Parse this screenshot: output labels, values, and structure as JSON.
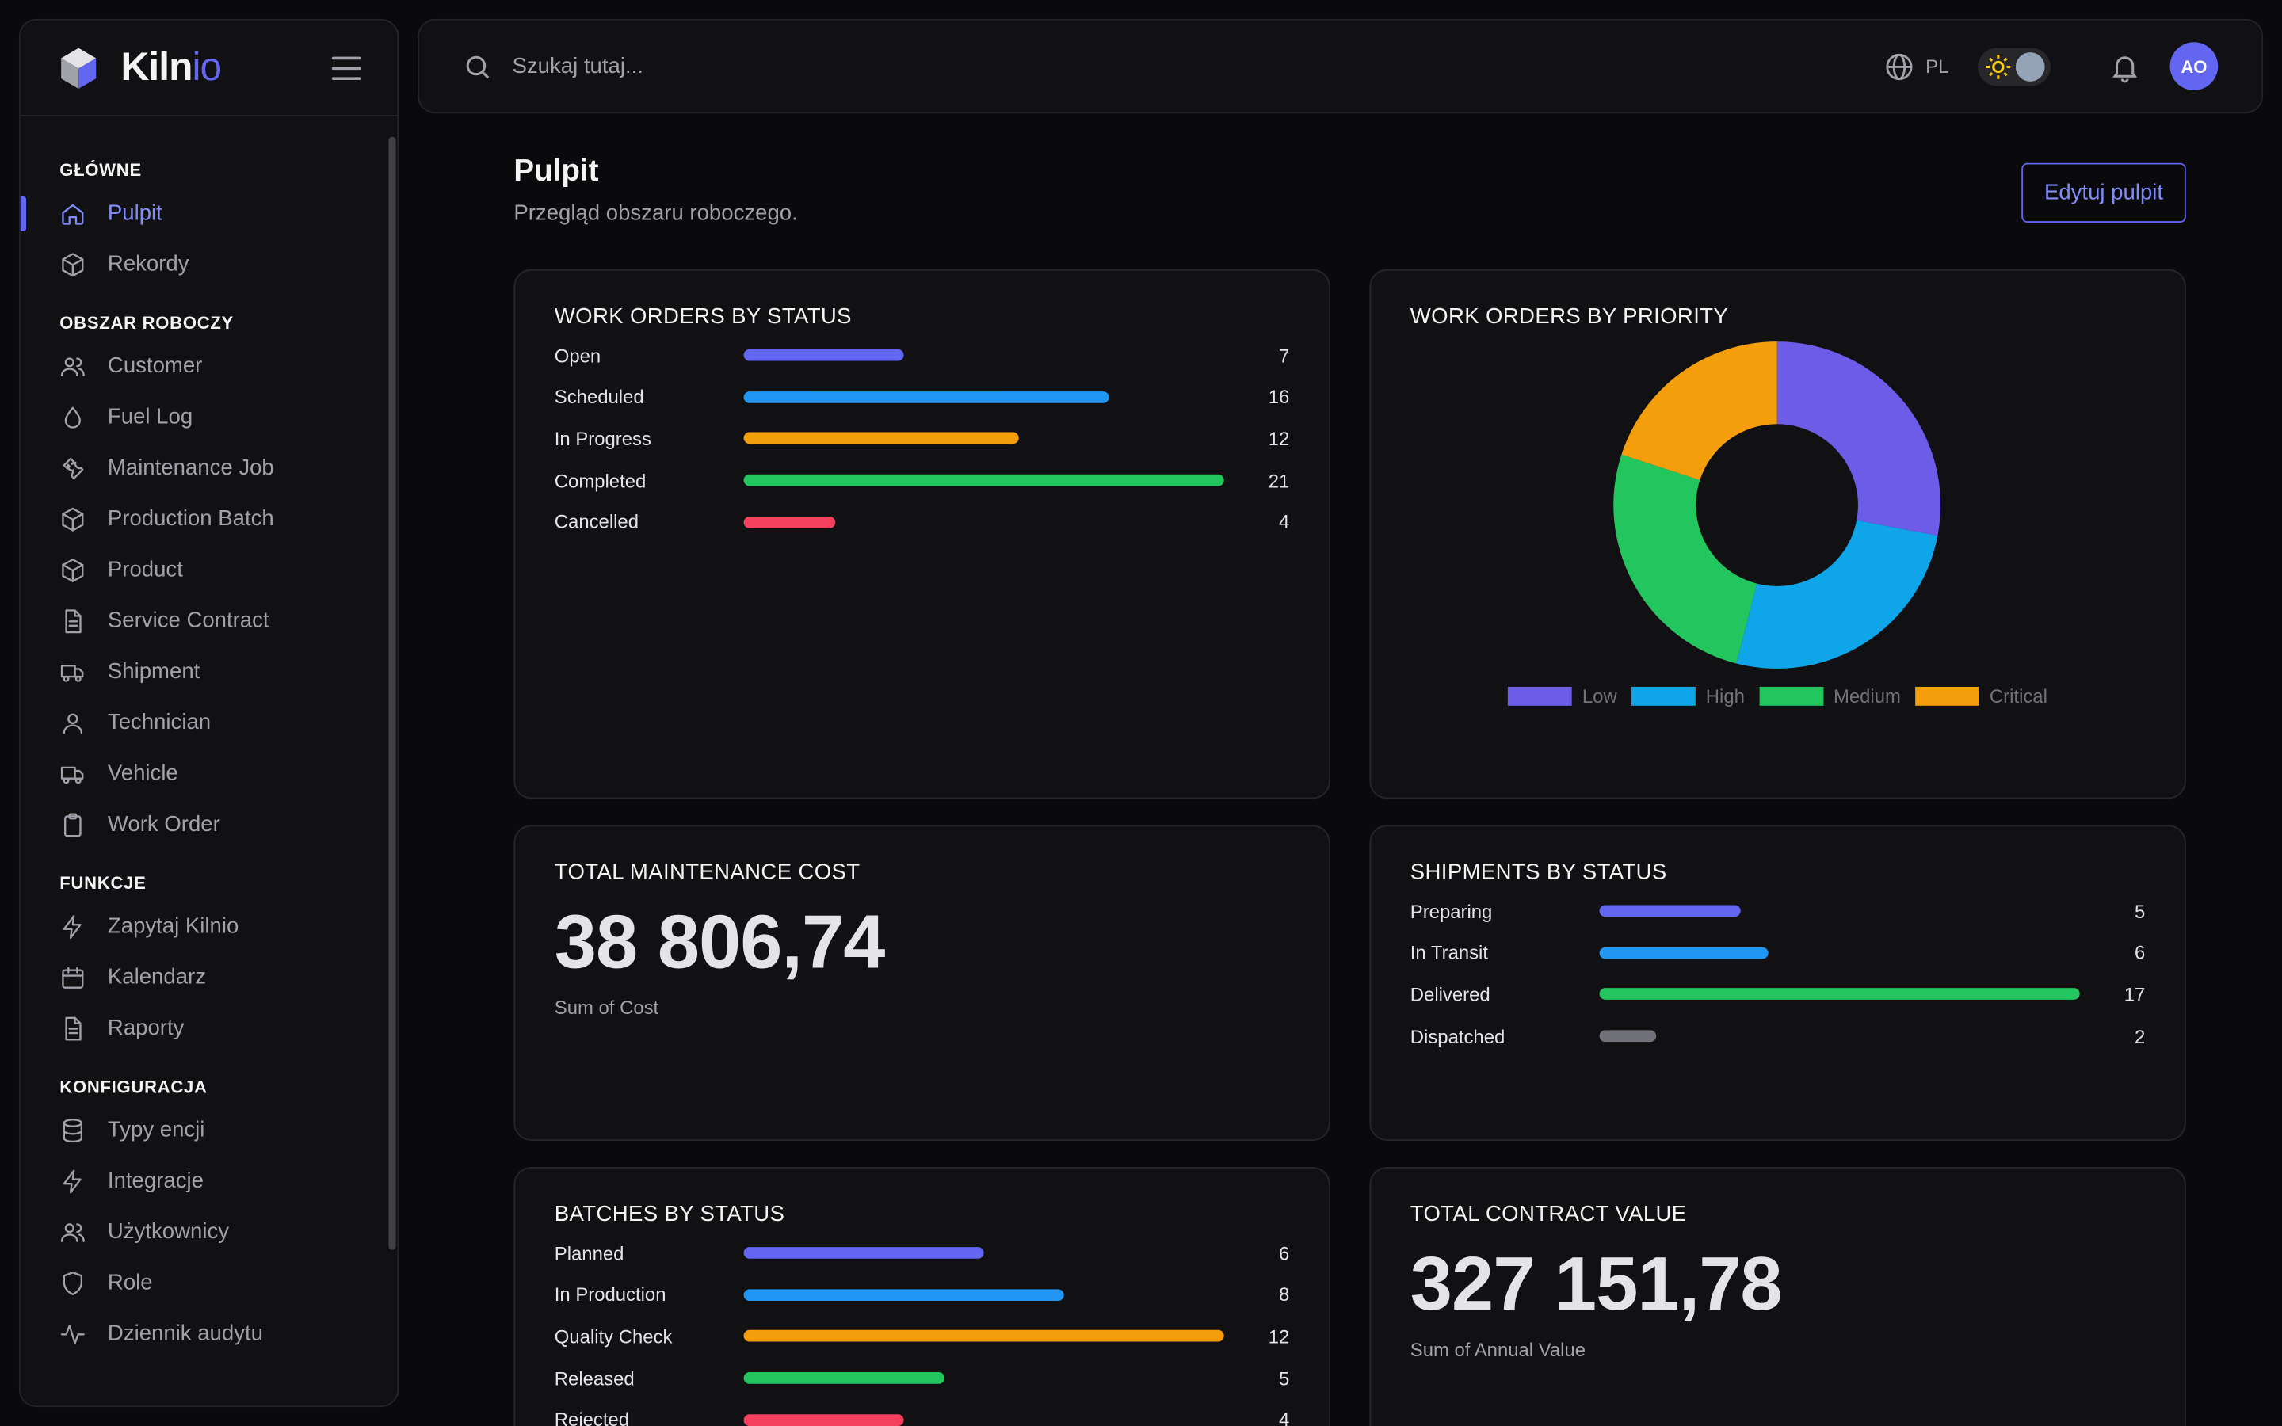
{
  "app": {
    "logo_main": "Kiln",
    "logo_accent": "io"
  },
  "sidebar": {
    "sections": [
      {
        "label": "GŁÓWNE",
        "items": [
          {
            "label": "Pulpit",
            "icon": "home-icon",
            "active": true
          },
          {
            "label": "Rekordy",
            "icon": "cube-icon"
          }
        ]
      },
      {
        "label": "OBSZAR ROBOCZY",
        "items": [
          {
            "label": "Customer",
            "icon": "users-icon"
          },
          {
            "label": "Fuel Log",
            "icon": "droplet-icon"
          },
          {
            "label": "Maintenance Job",
            "icon": "wrench-icon"
          },
          {
            "label": "Production Batch",
            "icon": "cube-icon"
          },
          {
            "label": "Product",
            "icon": "cube-icon"
          },
          {
            "label": "Service Contract",
            "icon": "document-icon"
          },
          {
            "label": "Shipment",
            "icon": "truck-icon"
          },
          {
            "label": "Technician",
            "icon": "user-icon"
          },
          {
            "label": "Vehicle",
            "icon": "truck-icon"
          },
          {
            "label": "Work Order",
            "icon": "clipboard-icon"
          }
        ]
      },
      {
        "label": "FUNKCJE",
        "items": [
          {
            "label": "Zapytaj Kilnio",
            "icon": "bolt-icon"
          },
          {
            "label": "Kalendarz",
            "icon": "calendar-icon"
          },
          {
            "label": "Raporty",
            "icon": "document-icon"
          }
        ]
      },
      {
        "label": "KONFIGURACJA",
        "items": [
          {
            "label": "Typy encji",
            "icon": "database-icon"
          },
          {
            "label": "Integracje",
            "icon": "bolt-icon"
          },
          {
            "label": "Użytkownicy",
            "icon": "users-icon"
          },
          {
            "label": "Role",
            "icon": "shield-icon"
          },
          {
            "label": "Dziennik audytu",
            "icon": "activity-icon"
          }
        ]
      }
    ]
  },
  "topbar": {
    "search_placeholder": "Szukaj tutaj...",
    "language": "PL",
    "avatar_initials": "AO"
  },
  "page": {
    "title": "Pulpit",
    "subtitle": "Przegląd obszaru roboczego.",
    "edit_button": "Edytuj pulpit"
  },
  "cards": {
    "wo_status": {
      "title": "WORK ORDERS BY STATUS",
      "max": 21,
      "rows": [
        {
          "label": "Open",
          "value": "7",
          "color": "#6366f1"
        },
        {
          "label": "Scheduled",
          "value": "16",
          "color": "#2196f3"
        },
        {
          "label": "In Progress",
          "value": "12",
          "color": "#f59e0b"
        },
        {
          "label": "Completed",
          "value": "21",
          "color": "#22c55e"
        },
        {
          "label": "Cancelled",
          "value": "4",
          "color": "#f43f5e"
        }
      ]
    },
    "wo_priority": {
      "title": "WORK ORDERS BY PRIORITY"
    },
    "maint_cost": {
      "title": "TOTAL MAINTENANCE COST",
      "value": "38 806,74",
      "caption": "Sum of Cost"
    },
    "shipments": {
      "title": "SHIPMENTS BY STATUS",
      "max": 17,
      "rows": [
        {
          "label": "Preparing",
          "value": "5",
          "color": "#6366f1"
        },
        {
          "label": "In Transit",
          "value": "6",
          "color": "#2196f3"
        },
        {
          "label": "Delivered",
          "value": "17",
          "color": "#22c55e"
        },
        {
          "label": "Dispatched",
          "value": "2",
          "color": "#71717a"
        }
      ]
    },
    "batches": {
      "title": "BATCHES BY STATUS",
      "max": 12,
      "rows": [
        {
          "label": "Planned",
          "value": "6",
          "color": "#6366f1"
        },
        {
          "label": "In Production",
          "value": "8",
          "color": "#2196f3"
        },
        {
          "label": "Quality Check",
          "value": "12",
          "color": "#f59e0b"
        },
        {
          "label": "Released",
          "value": "5",
          "color": "#22c55e"
        },
        {
          "label": "Rejected",
          "value": "4",
          "color": "#f43f5e"
        }
      ]
    },
    "contract_value": {
      "title": "TOTAL CONTRACT VALUE",
      "value": "327 151,78",
      "caption": "Sum of Annual Value"
    }
  },
  "chart_data": {
    "type": "pie",
    "categories": [
      "Low",
      "High",
      "Medium",
      "Critical"
    ],
    "values": [
      14,
      13,
      13,
      10
    ],
    "colors": [
      "#6d5ce8",
      "#0ea5e9",
      "#22c55e",
      "#f59e0b"
    ],
    "title": "WORK ORDERS BY PRIORITY",
    "legend_position": "bottom",
    "donut": true
  }
}
